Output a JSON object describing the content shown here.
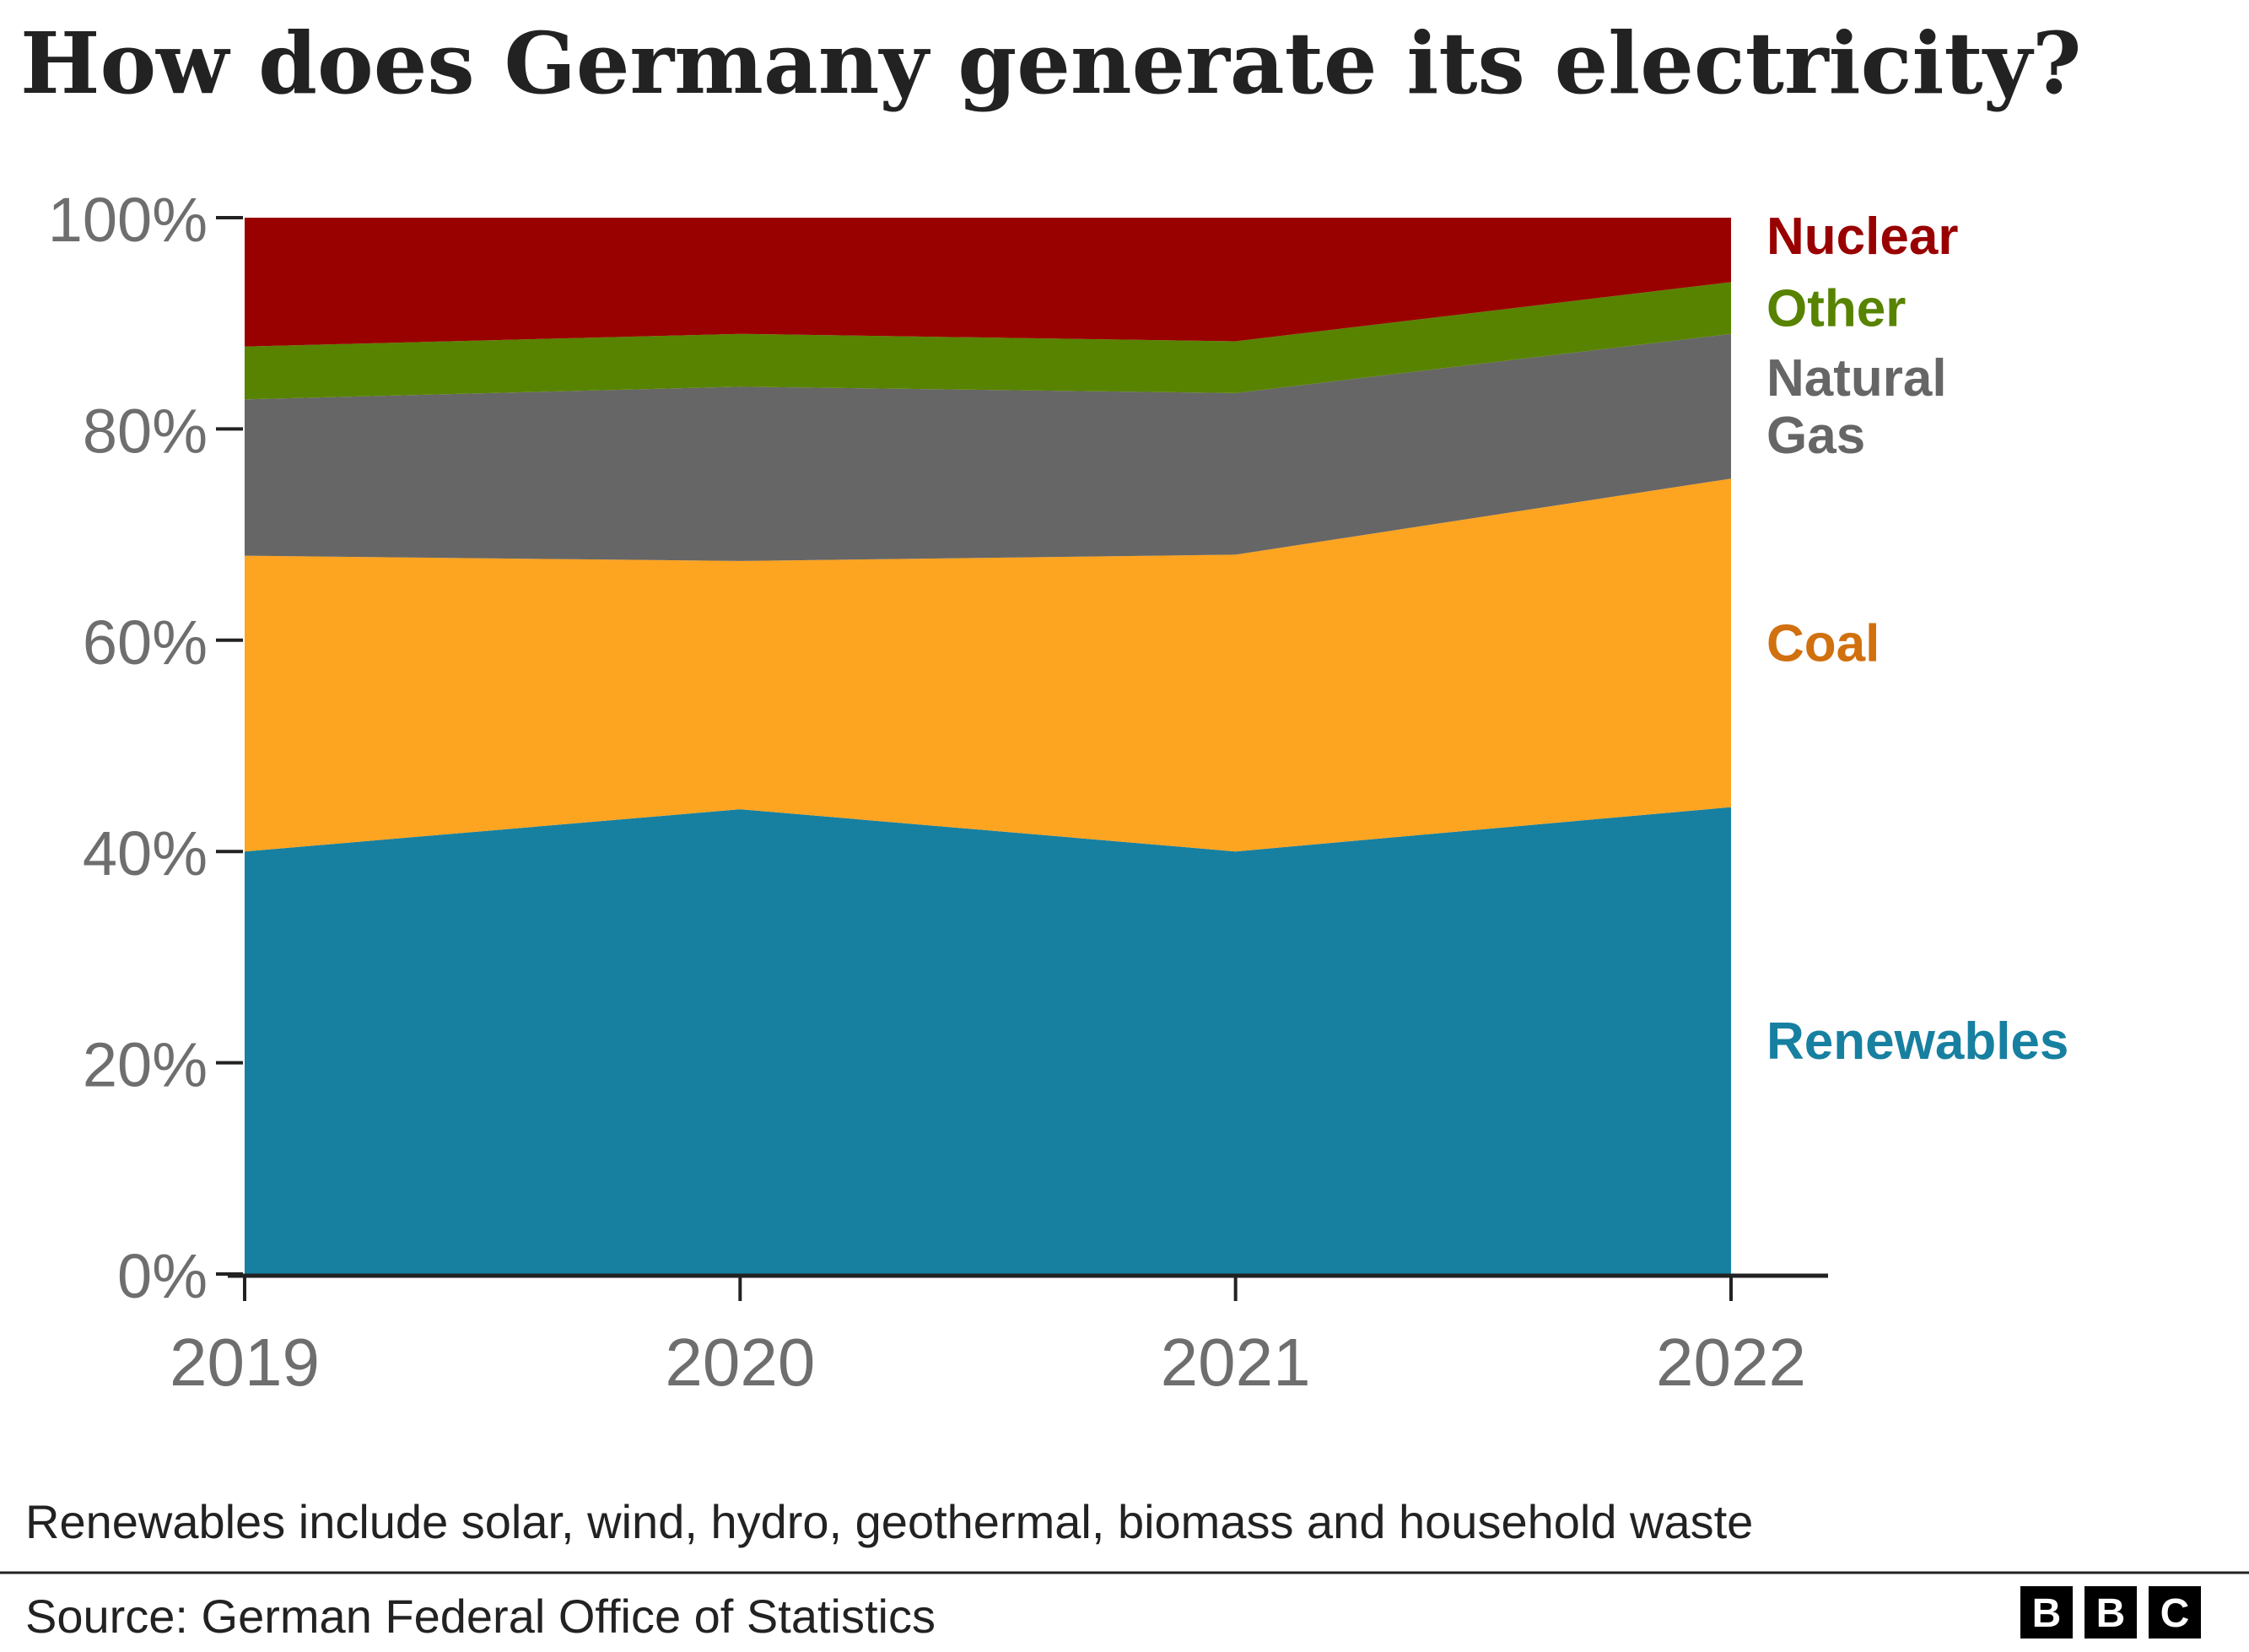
{
  "title": "How does Germany generate its electricity?",
  "note": "Renewables include solar, wind, hydro, geothermal, biomass and household waste",
  "source": "Source: German Federal Office of Statistics",
  "logo": {
    "letters": [
      "B",
      "B",
      "C"
    ]
  },
  "chart_data": {
    "type": "area",
    "stacked": true,
    "x": [
      "2019",
      "2020",
      "2021",
      "2022"
    ],
    "ylim": [
      0,
      100
    ],
    "yticks": [
      0,
      20,
      40,
      60,
      80,
      100
    ],
    "ytick_labels": [
      "0%",
      "20%",
      "40%",
      "60%",
      "80%",
      "100%"
    ],
    "legend_placement": "right (direct labels)",
    "grid": false,
    "series": [
      {
        "name": "Renewables",
        "values": [
          40.0,
          44.0,
          40.0,
          44.2
        ],
        "color": "#1780a1",
        "label_color": "#1780a1",
        "label_lines": [
          "Renewables"
        ]
      },
      {
        "name": "Coal",
        "values": [
          28.0,
          23.5,
          28.1,
          31.1
        ],
        "color": "#fda421",
        "label_color": "#d1700e",
        "label_lines": [
          "Coal"
        ]
      },
      {
        "name": "Natural Gas",
        "values": [
          14.8,
          16.5,
          15.3,
          13.7
        ],
        "color": "#666666",
        "label_color": "#666666",
        "label_lines": [
          "Natural",
          "Gas"
        ]
      },
      {
        "name": "Other",
        "values": [
          5.0,
          5.0,
          4.9,
          4.9
        ],
        "color": "#588300",
        "label_color": "#588300",
        "label_lines": [
          "Other"
        ]
      },
      {
        "name": "Nuclear",
        "values": [
          12.2,
          11.0,
          11.7,
          6.1
        ],
        "color": "#990000",
        "label_color": "#990000",
        "label_lines": [
          "Nuclear"
        ]
      }
    ]
  }
}
